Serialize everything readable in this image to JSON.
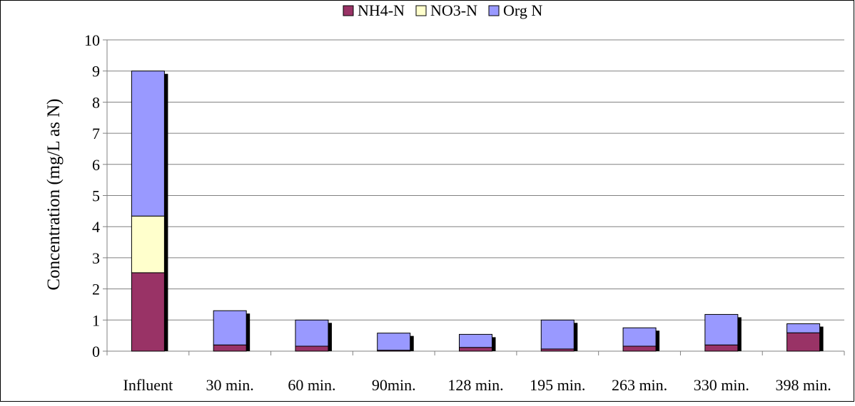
{
  "chart_data": {
    "type": "bar",
    "stacked": true,
    "three_d_shadow": true,
    "categories": [
      "Influent",
      "30 min.",
      "60 min.",
      "90min.",
      "128 min.",
      "195 min.",
      "263 min.",
      "330 min.",
      "398 min."
    ],
    "series": [
      {
        "name": "NH4-N",
        "color": "#993366",
        "values": [
          2.52,
          0.2,
          0.16,
          0.03,
          0.12,
          0.07,
          0.16,
          0.2,
          0.59
        ]
      },
      {
        "name": "NO3-N",
        "color": "#ffffcc",
        "values": [
          1.82,
          0,
          0,
          0,
          0,
          0,
          0,
          0,
          0
        ]
      },
      {
        "name": "Org N",
        "color": "#9999ff",
        "values": [
          4.66,
          1.1,
          0.84,
          0.55,
          0.42,
          0.93,
          0.59,
          0.98,
          0.29
        ]
      }
    ],
    "ylabel": "Concentration (mg/L as N)",
    "xlabel": "",
    "ylim": [
      0,
      10
    ],
    "yticks": [
      0,
      1,
      2,
      3,
      4,
      5,
      6,
      7,
      8,
      9,
      10
    ],
    "grid": true,
    "legend_position": "top-center"
  }
}
